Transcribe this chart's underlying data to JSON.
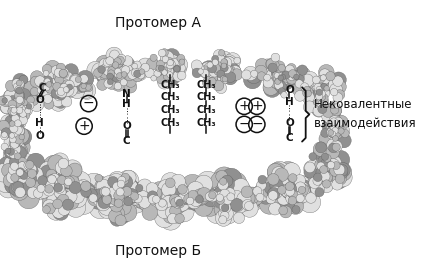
{
  "title_top": "Протомер А",
  "title_bottom": "Протомер Б",
  "label_right": "Нековалентные\nвзаимодействия",
  "bg_color": "#ffffff",
  "sphere_color_light": "#e0e0e0",
  "sphere_color_mid": "#b8b8b8",
  "sphere_color_dark": "#909090",
  "sphere_edge": "#606060",
  "text_color": "#111111",
  "bond_color": "#111111",
  "fig_width": 4.26,
  "fig_height": 2.75,
  "dpi": 100
}
